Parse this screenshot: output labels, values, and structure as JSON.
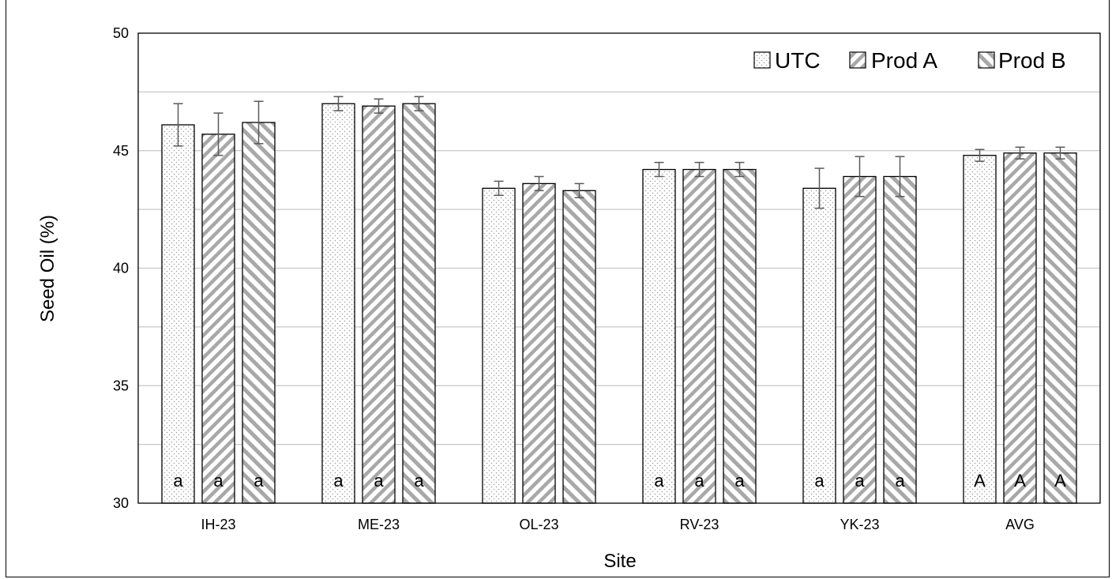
{
  "chart_data": {
    "type": "bar",
    "title": "",
    "xlabel": "Site",
    "ylabel": "Seed Oil (%)",
    "ylim": [
      30,
      50
    ],
    "yticks": [
      30,
      35,
      40,
      45,
      50
    ],
    "grid_lines": [
      32.5,
      35,
      37.5,
      40,
      42.5,
      45,
      47.5
    ],
    "grid": true,
    "legend_position": "top-right",
    "categories": [
      "IH-23",
      "ME-23",
      "OL-23",
      "RV-23",
      "YK-23",
      "AVG"
    ],
    "series": [
      {
        "name": "UTC",
        "pattern": "dots",
        "values": [
          46.1,
          47.0,
          43.4,
          44.2,
          43.4,
          44.8
        ],
        "errors": [
          0.9,
          0.3,
          0.3,
          0.3,
          0.85,
          0.25
        ],
        "labels": [
          "a",
          "a",
          "",
          "a",
          "a",
          "A"
        ]
      },
      {
        "name": "Prod A",
        "pattern": "diagonal-hatch-dense",
        "values": [
          45.7,
          46.9,
          43.6,
          44.2,
          43.9,
          44.9
        ],
        "errors": [
          0.9,
          0.3,
          0.3,
          0.3,
          0.85,
          0.25
        ],
        "labels": [
          "a",
          "a",
          "",
          "a",
          "a",
          "A"
        ]
      },
      {
        "name": "Prod B",
        "pattern": "diagonal-hatch-wide",
        "values": [
          46.2,
          47.0,
          43.3,
          44.2,
          43.9,
          44.9
        ],
        "errors": [
          0.9,
          0.3,
          0.3,
          0.3,
          0.85,
          0.25
        ],
        "labels": [
          "a",
          "a",
          "",
          "a",
          "a",
          "A"
        ]
      }
    ]
  }
}
